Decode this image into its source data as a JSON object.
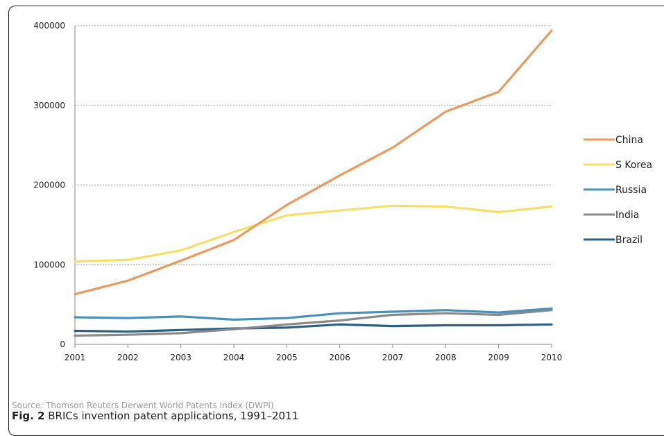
{
  "chart_data": {
    "type": "line",
    "categories": [
      "2001",
      "2002",
      "2003",
      "2004",
      "2005",
      "2006",
      "2007",
      "2008",
      "2009",
      "2010"
    ],
    "ylim": [
      0,
      400000
    ],
    "yticks": [
      "0",
      "100000",
      "200000",
      "300000",
      "400000"
    ],
    "grid": true,
    "legend_position": "right",
    "series": [
      {
        "name": "China",
        "color": "#e89a5f",
        "values": [
          63000,
          80000,
          105000,
          131000,
          175000,
          212000,
          247000,
          292000,
          317000,
          394000
        ]
      },
      {
        "name": "S Korea",
        "color": "#f2e068",
        "values": [
          104000,
          106000,
          118000,
          141000,
          162000,
          168000,
          174000,
          173000,
          166000,
          173000
        ]
      },
      {
        "name": "Russia",
        "color": "#4a90b8",
        "values": [
          34000,
          33000,
          35000,
          31000,
          33000,
          39000,
          41000,
          43000,
          40000,
          45000
        ]
      },
      {
        "name": "India",
        "color": "#8a8a8a",
        "values": [
          11000,
          12000,
          14000,
          19000,
          25000,
          30000,
          37000,
          39000,
          37000,
          43000
        ]
      },
      {
        "name": "Brazil",
        "color": "#2f5f7f",
        "values": [
          17000,
          16000,
          18000,
          20000,
          21000,
          25000,
          23000,
          24000,
          24000,
          25000
        ]
      }
    ]
  },
  "source": "Source: Thomson Reuters Derwent World Patents Index (DWPI)",
  "caption": {
    "label": "Fig. 2",
    "text": " BRICs invention patent applications, 1991–2011"
  }
}
